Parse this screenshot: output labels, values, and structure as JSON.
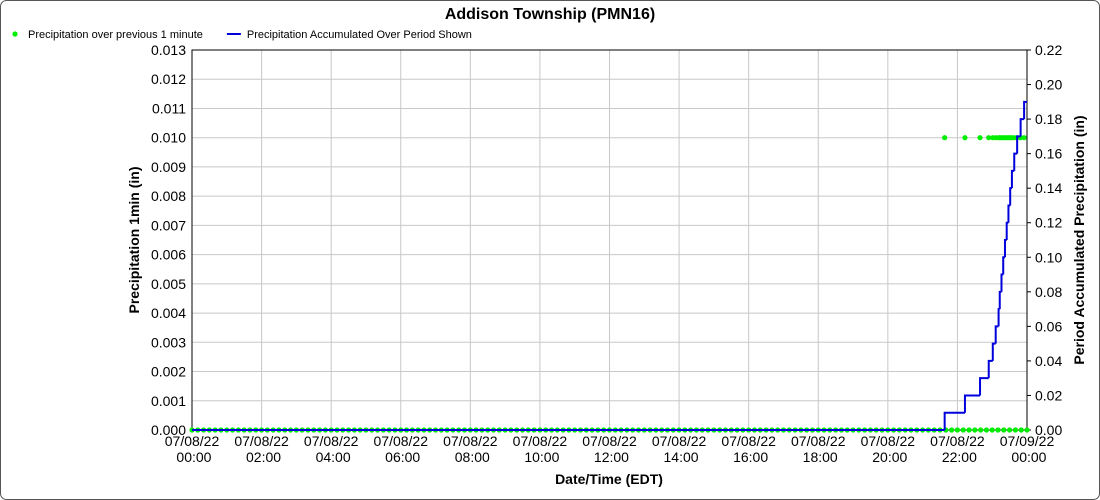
{
  "chart_data": {
    "type": "line",
    "title": "Addison Township (PMN16)",
    "x_label": "Date/Time (EDT)",
    "y_label": "Precipitation 1min (in)",
    "y2_label": "Period Accumulated Precipitation (in)",
    "grid": true,
    "legend": "top-left",
    "xlim": [
      "07/08/22 00:00",
      "07/09/22 00:00"
    ],
    "xticks": [
      "07/08/22 00:00",
      "07/08/22 02:00",
      "07/08/22 04:00",
      "07/08/22 06:00",
      "07/08/22 08:00",
      "07/08/22 10:00",
      "07/08/22 12:00",
      "07/08/22 14:00",
      "07/08/22 16:00",
      "07/08/22 18:00",
      "07/08/22 20:00",
      "07/08/22 22:00",
      "07/09/22 00:00"
    ],
    "ylim": [
      0,
      0.013
    ],
    "yticks": [
      {
        "value": 0,
        "label": "0.000"
      },
      {
        "value": 0.001,
        "label": "0.001"
      },
      {
        "value": 0.002,
        "label": "0.002"
      },
      {
        "value": 0.003,
        "label": "0.003"
      },
      {
        "value": 0.004,
        "label": "0.004"
      },
      {
        "value": 0.005,
        "label": "0.005"
      },
      {
        "value": 0.006,
        "label": "0.006"
      },
      {
        "value": 0.007,
        "label": "0.007"
      },
      {
        "value": 0.008,
        "label": "0.008"
      },
      {
        "value": 0.009,
        "label": "0.009"
      },
      {
        "value": 0.01,
        "label": "0.010"
      },
      {
        "value": 0.011,
        "label": "0.011"
      },
      {
        "value": 0.012,
        "label": "0.012"
      },
      {
        "value": 0.013,
        "label": "0.013"
      }
    ],
    "y2lim": [
      0,
      0.22
    ],
    "y2ticks": [
      {
        "value": 0,
        "label": "0.00"
      },
      {
        "value": 0.02,
        "label": "0.02"
      },
      {
        "value": 0.04,
        "label": "0.04"
      },
      {
        "value": 0.06,
        "label": "0.06"
      },
      {
        "value": 0.08,
        "label": "0.08"
      },
      {
        "value": 0.1,
        "label": "0.10"
      },
      {
        "value": 0.12,
        "label": "0.12"
      },
      {
        "value": 0.14,
        "label": "0.14"
      },
      {
        "value": 0.16,
        "label": "0.16"
      },
      {
        "value": 0.18,
        "label": "0.18"
      },
      {
        "value": 0.2,
        "label": "0.20"
      },
      {
        "value": 0.22,
        "label": "0.22"
      }
    ],
    "series": [
      {
        "name": "Precipitation over previous 1 minute",
        "color": "#00ee00",
        "style": "markers",
        "x": [
          "07/08/22 00:00",
          "07/08/22 00:10",
          "07/08/22 00:20",
          "07/08/22 00:30",
          "07/08/22 00:40",
          "07/08/22 00:50",
          "07/08/22 01:00",
          "07/08/22 01:10",
          "07/08/22 01:20",
          "07/08/22 01:30",
          "07/08/22 01:40",
          "07/08/22 01:50",
          "07/08/22 02:00",
          "07/08/22 02:10",
          "07/08/22 02:20",
          "07/08/22 02:30",
          "07/08/22 02:40",
          "07/08/22 02:50",
          "07/08/22 03:00",
          "07/08/22 03:10",
          "07/08/22 03:20",
          "07/08/22 03:30",
          "07/08/22 03:40",
          "07/08/22 03:50",
          "07/08/22 04:00",
          "07/08/22 04:10",
          "07/08/22 04:20",
          "07/08/22 04:30",
          "07/08/22 04:40",
          "07/08/22 04:50",
          "07/08/22 05:00",
          "07/08/22 05:10",
          "07/08/22 05:20",
          "07/08/22 05:30",
          "07/08/22 05:40",
          "07/08/22 05:50",
          "07/08/22 06:00",
          "07/08/22 06:10",
          "07/08/22 06:20",
          "07/08/22 06:30",
          "07/08/22 06:40",
          "07/08/22 06:50",
          "07/08/22 07:00",
          "07/08/22 07:10",
          "07/08/22 07:20",
          "07/08/22 07:30",
          "07/08/22 07:40",
          "07/08/22 07:50",
          "07/08/22 08:00",
          "07/08/22 08:10",
          "07/08/22 08:20",
          "07/08/22 08:30",
          "07/08/22 08:40",
          "07/08/22 08:50",
          "07/08/22 09:00",
          "07/08/22 09:10",
          "07/08/22 09:20",
          "07/08/22 09:30",
          "07/08/22 09:40",
          "07/08/22 09:50",
          "07/08/22 10:00",
          "07/08/22 10:10",
          "07/08/22 10:20",
          "07/08/22 10:30",
          "07/08/22 10:40",
          "07/08/22 10:50",
          "07/08/22 11:00",
          "07/08/22 11:10",
          "07/08/22 11:20",
          "07/08/22 11:30",
          "07/08/22 11:40",
          "07/08/22 11:50",
          "07/08/22 12:00",
          "07/08/22 12:10",
          "07/08/22 12:20",
          "07/08/22 12:30",
          "07/08/22 12:40",
          "07/08/22 12:50",
          "07/08/22 13:00",
          "07/08/22 13:10",
          "07/08/22 13:20",
          "07/08/22 13:30",
          "07/08/22 13:40",
          "07/08/22 13:50",
          "07/08/22 14:00",
          "07/08/22 14:10",
          "07/08/22 14:20",
          "07/08/22 14:30",
          "07/08/22 14:40",
          "07/08/22 14:50",
          "07/08/22 15:00",
          "07/08/22 15:10",
          "07/08/22 15:20",
          "07/08/22 15:30",
          "07/08/22 15:40",
          "07/08/22 15:50",
          "07/08/22 16:00",
          "07/08/22 16:10",
          "07/08/22 16:20",
          "07/08/22 16:30",
          "07/08/22 16:40",
          "07/08/22 16:50",
          "07/08/22 17:00",
          "07/08/22 17:10",
          "07/08/22 17:20",
          "07/08/22 17:30",
          "07/08/22 17:40",
          "07/08/22 17:50",
          "07/08/22 18:00",
          "07/08/22 18:10",
          "07/08/22 18:20",
          "07/08/22 18:30",
          "07/08/22 18:40",
          "07/08/22 18:50",
          "07/08/22 19:00",
          "07/08/22 19:10",
          "07/08/22 19:20",
          "07/08/22 19:30",
          "07/08/22 19:40",
          "07/08/22 19:50",
          "07/08/22 20:00",
          "07/08/22 20:10",
          "07/08/22 20:20",
          "07/08/22 20:30",
          "07/08/22 20:40",
          "07/08/22 20:50",
          "07/08/22 21:00",
          "07/08/22 21:10",
          "07/08/22 21:20",
          "07/08/22 21:30",
          "07/08/22 21:38",
          "07/08/22 21:40",
          "07/08/22 21:50",
          "07/08/22 22:00",
          "07/08/22 22:10",
          "07/08/22 22:13",
          "07/08/22 22:20",
          "07/08/22 22:30",
          "07/08/22 22:39",
          "07/08/22 22:40",
          "07/08/22 22:50",
          "07/08/22 22:54",
          "07/08/22 23:00",
          "07/08/22 23:01",
          "07/08/22 23:06",
          "07/08/22 23:10",
          "07/08/22 23:11",
          "07/08/22 23:13",
          "07/08/22 23:16",
          "07/08/22 23:19",
          "07/08/22 23:20",
          "07/08/22 23:22",
          "07/08/22 23:25",
          "07/08/22 23:28",
          "07/08/22 23:30",
          "07/08/22 23:31",
          "07/08/22 23:34",
          "07/08/22 23:38",
          "07/08/22 23:40",
          "07/08/22 23:43",
          "07/08/22 23:49",
          "07/08/22 23:50",
          "07/08/22 23:55",
          "07/09/22 00:00"
        ],
        "values": [
          0,
          0,
          0,
          0,
          0,
          0,
          0,
          0,
          0,
          0,
          0,
          0,
          0,
          0,
          0,
          0,
          0,
          0,
          0,
          0,
          0,
          0,
          0,
          0,
          0,
          0,
          0,
          0,
          0,
          0,
          0,
          0,
          0,
          0,
          0,
          0,
          0,
          0,
          0,
          0,
          0,
          0,
          0,
          0,
          0,
          0,
          0,
          0,
          0,
          0,
          0,
          0,
          0,
          0,
          0,
          0,
          0,
          0,
          0,
          0,
          0,
          0,
          0,
          0,
          0,
          0,
          0,
          0,
          0,
          0,
          0,
          0,
          0,
          0,
          0,
          0,
          0,
          0,
          0,
          0,
          0,
          0,
          0,
          0,
          0,
          0,
          0,
          0,
          0,
          0,
          0,
          0,
          0,
          0,
          0,
          0,
          0,
          0,
          0,
          0,
          0,
          0,
          0,
          0,
          0,
          0,
          0,
          0,
          0,
          0,
          0,
          0,
          0,
          0,
          0,
          0,
          0,
          0,
          0,
          0,
          0,
          0,
          0,
          0,
          0,
          0,
          0,
          0,
          0,
          0,
          0.01,
          0,
          0,
          0,
          0,
          0.01,
          0,
          0,
          0.01,
          0,
          0,
          0.01,
          0,
          0.01,
          0.01,
          0,
          0.01,
          0.01,
          0.01,
          0.01,
          0,
          0.01,
          0.01,
          0.01,
          0,
          0.01,
          0.01,
          0.01,
          0,
          0.01,
          0.01,
          0,
          0.01,
          0
        ]
      },
      {
        "name": "Precipitation Accumulated Over Period Shown",
        "color": "#0000dd",
        "style": "step",
        "axis": "y2",
        "x": [
          "07/08/22 00:00",
          "07/08/22 21:38",
          "07/08/22 22:13",
          "07/08/22 22:39",
          "07/08/22 22:54",
          "07/08/22 23:01",
          "07/08/22 23:06",
          "07/08/22 23:11",
          "07/08/22 23:13",
          "07/08/22 23:16",
          "07/08/22 23:19",
          "07/08/22 23:22",
          "07/08/22 23:25",
          "07/08/22 23:28",
          "07/08/22 23:31",
          "07/08/22 23:34",
          "07/08/22 23:38",
          "07/08/22 23:43",
          "07/08/22 23:49",
          "07/08/22 23:55",
          "07/09/22 00:00"
        ],
        "values": [
          0,
          0.01,
          0.02,
          0.03,
          0.04,
          0.05,
          0.06,
          0.07,
          0.08,
          0.09,
          0.1,
          0.11,
          0.12,
          0.13,
          0.14,
          0.15,
          0.16,
          0.17,
          0.18,
          0.19,
          0.19
        ]
      }
    ]
  }
}
